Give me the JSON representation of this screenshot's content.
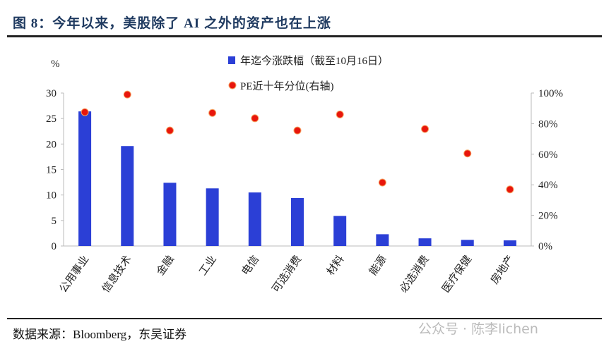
{
  "title": "图 8：今年以来，美股除了 AI 之外的资产也在上涨",
  "source": "数据来源：Bloomberg，东吴证券",
  "watermark": "公众号 · 陈李lichen",
  "chart_data": {
    "type": "bar+scatter",
    "y_unit_label": "%",
    "categories": [
      "公用事业",
      "信息技术",
      "金融",
      "工业",
      "电信",
      "可选消费",
      "材料",
      "能源",
      "必选消费",
      "医疗保健",
      "房地产"
    ],
    "series": [
      {
        "name": "年迄今涨跌幅（截至10月16日）",
        "type": "bar",
        "axis": "left",
        "color": "#2b3fd6",
        "values": [
          26.4,
          19.6,
          12.4,
          11.3,
          10.5,
          9.4,
          5.9,
          2.3,
          1.5,
          1.2,
          1.1
        ]
      },
      {
        "name": "PE近十年分位(右轴)",
        "type": "scatter",
        "axis": "right",
        "color": "#e8160c",
        "values": [
          87.5,
          99,
          75.5,
          87,
          83.5,
          75.5,
          86,
          41.5,
          76.5,
          60.5,
          37
        ]
      }
    ],
    "left_axis": {
      "range": [
        0,
        30
      ],
      "ticks": [
        "0",
        "5",
        "10",
        "15",
        "20",
        "25",
        "30"
      ]
    },
    "right_axis": {
      "range": [
        0,
        100
      ],
      "ticks": [
        "0%",
        "20%",
        "40%",
        "60%",
        "80%",
        "100%"
      ]
    },
    "legend_placement": "top-center",
    "grid": false
  }
}
